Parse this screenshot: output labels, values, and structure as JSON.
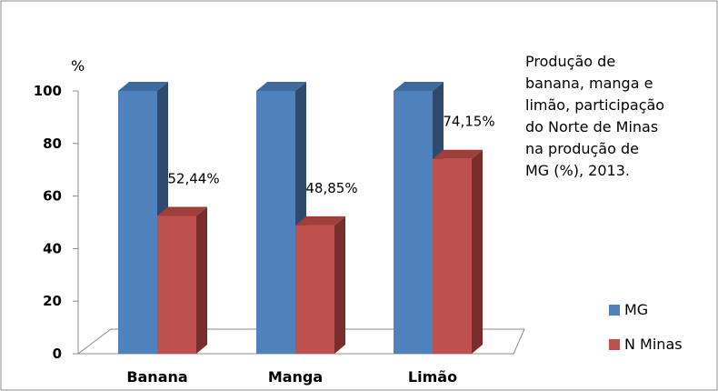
{
  "chart_data": {
    "type": "bar",
    "title": "Produção de\nbanana, manga e\nlimão, participação\ndo  Norte de Minas\nna produção de\nMG (%), 2013.",
    "ylabel": "%",
    "xlabel": "",
    "categories": [
      "Banana",
      "Manga",
      "Limão"
    ],
    "series": [
      {
        "name": "MG",
        "values": [
          100,
          100,
          100
        ],
        "color": "#4F81BD",
        "side_color": "#2E4A6E",
        "top_color": "#3F6A9E"
      },
      {
        "name": "N Minas",
        "values": [
          52.44,
          48.85,
          74.15
        ],
        "color": "#C0504D",
        "side_color": "#7A2E2C",
        "top_color": "#A03E3B"
      }
    ],
    "data_labels": [
      "52,44%",
      "48,85%",
      "74,15%"
    ],
    "ylim": [
      0,
      100
    ],
    "yticks": [
      0,
      20,
      40,
      60,
      80,
      100
    ],
    "grid": false,
    "legend_position": "right"
  }
}
